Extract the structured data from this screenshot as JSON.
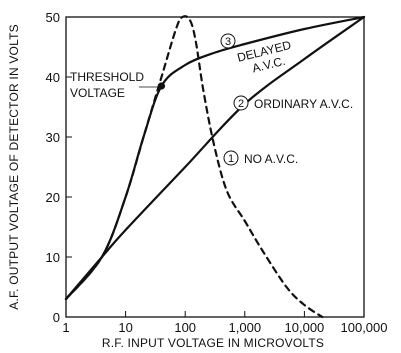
{
  "chart_data": {
    "type": "line",
    "xlabel": "R.F. INPUT VOLTAGE IN MICROVOLTS",
    "ylabel": "A.F. OUTPUT VOLTAGE OF DETECTOR IN VOLTS",
    "x_scale": "log",
    "xlim": [
      1,
      100000
    ],
    "ylim": [
      0,
      50
    ],
    "x_ticks": [
      1,
      10,
      100,
      1000,
      10000,
      100000
    ],
    "x_tick_labels": [
      "1",
      "10",
      "100",
      "1,000",
      "10,000",
      "100,000"
    ],
    "y_ticks": [
      0,
      10,
      20,
      30,
      40,
      50
    ],
    "y_tick_labels": [
      "0",
      "10",
      "20",
      "30",
      "40",
      "50"
    ],
    "grid": false,
    "series": [
      {
        "name": "NO A.V.C.",
        "number": "1",
        "style": "dashed",
        "points": [
          [
            1,
            3
          ],
          [
            4,
            10
          ],
          [
            10,
            20
          ],
          [
            20,
            30
          ],
          [
            40,
            40
          ],
          [
            70,
            48
          ],
          [
            90,
            50
          ],
          [
            120,
            49.5
          ],
          [
            150,
            46
          ],
          [
            200,
            38
          ],
          [
            300,
            29
          ],
          [
            500,
            21
          ],
          [
            1000,
            16
          ],
          [
            2000,
            11
          ],
          [
            5000,
            5
          ],
          [
            10000,
            2
          ],
          [
            20000,
            0
          ]
        ]
      },
      {
        "name": "ORDINARY A.V.C.",
        "number": "2",
        "style": "solid",
        "points": [
          [
            1,
            3
          ],
          [
            4,
            10
          ],
          [
            10,
            14.5
          ],
          [
            100,
            25
          ],
          [
            1000,
            35.5
          ],
          [
            10000,
            43
          ],
          [
            100000,
            50
          ]
        ]
      },
      {
        "name": "DELAYED A.V.C.",
        "number": "3",
        "style": "solid",
        "points": [
          [
            1,
            3
          ],
          [
            4,
            10
          ],
          [
            10,
            20
          ],
          [
            20,
            30
          ],
          [
            40,
            38.5
          ],
          [
            100,
            42
          ],
          [
            300,
            44
          ],
          [
            1000,
            45.5
          ],
          [
            10000,
            48
          ],
          [
            100000,
            50
          ]
        ]
      }
    ],
    "annotations": [
      {
        "text_lines": [
          "THRESHOLD",
          "VOLTAGE"
        ],
        "point": [
          40,
          38.5
        ]
      }
    ],
    "colors": {
      "line": "#111111",
      "background": "#ffffff"
    }
  }
}
